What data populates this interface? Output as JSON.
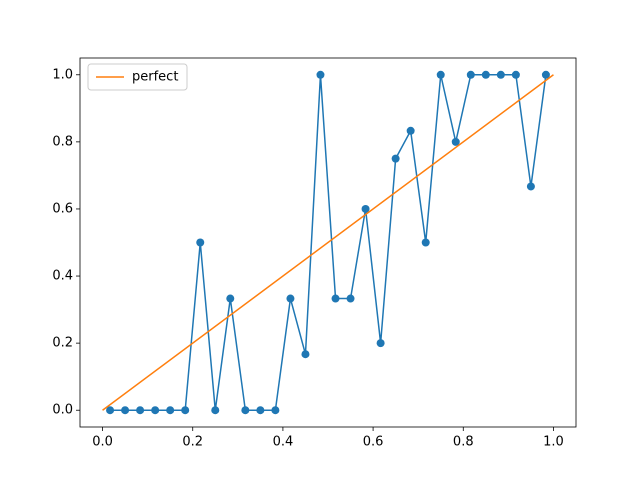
{
  "chart_data": {
    "type": "line",
    "series": [
      {
        "color": "#1f77b4",
        "marker": true,
        "x": [
          0.0167,
          0.05,
          0.0833,
          0.1167,
          0.15,
          0.1833,
          0.2167,
          0.25,
          0.2833,
          0.3167,
          0.35,
          0.3833,
          0.4167,
          0.45,
          0.4833,
          0.5167,
          0.55,
          0.5833,
          0.6167,
          0.65,
          0.6833,
          0.7167,
          0.75,
          0.7833,
          0.8167,
          0.85,
          0.8833,
          0.9167,
          0.95,
          0.9833
        ],
        "values": [
          0,
          0,
          0,
          0,
          0,
          0,
          0.5,
          0,
          0.333,
          0,
          0,
          0,
          0.333,
          0.167,
          1,
          0.333,
          0.333,
          0.6,
          0.2,
          0.75,
          0.833,
          0.5,
          1,
          0.8,
          1,
          1,
          1,
          1,
          0.667,
          1
        ]
      },
      {
        "name": "perfect",
        "color": "#ff7f0e",
        "marker": false,
        "x": [
          0,
          1
        ],
        "values": [
          0,
          1
        ]
      }
    ],
    "xlim": [
      -0.05,
      1.05
    ],
    "ylim": [
      -0.05,
      1.05
    ],
    "xticks": [
      {
        "value": 0,
        "label": "0.0"
      },
      {
        "value": 0.2,
        "label": "0.2"
      },
      {
        "value": 0.4,
        "label": "0.4"
      },
      {
        "value": 0.6,
        "label": "0.6"
      },
      {
        "value": 0.8,
        "label": "0.8"
      },
      {
        "value": 1,
        "label": "1.0"
      }
    ],
    "yticks": [
      {
        "value": 0,
        "label": "0.0"
      },
      {
        "value": 0.2,
        "label": "0.2"
      },
      {
        "value": 0.4,
        "label": "0.4"
      },
      {
        "value": 0.6,
        "label": "0.6"
      },
      {
        "value": 0.8,
        "label": "0.8"
      },
      {
        "value": 1,
        "label": "1.0"
      }
    ],
    "grid": false,
    "legend": "upper left"
  }
}
